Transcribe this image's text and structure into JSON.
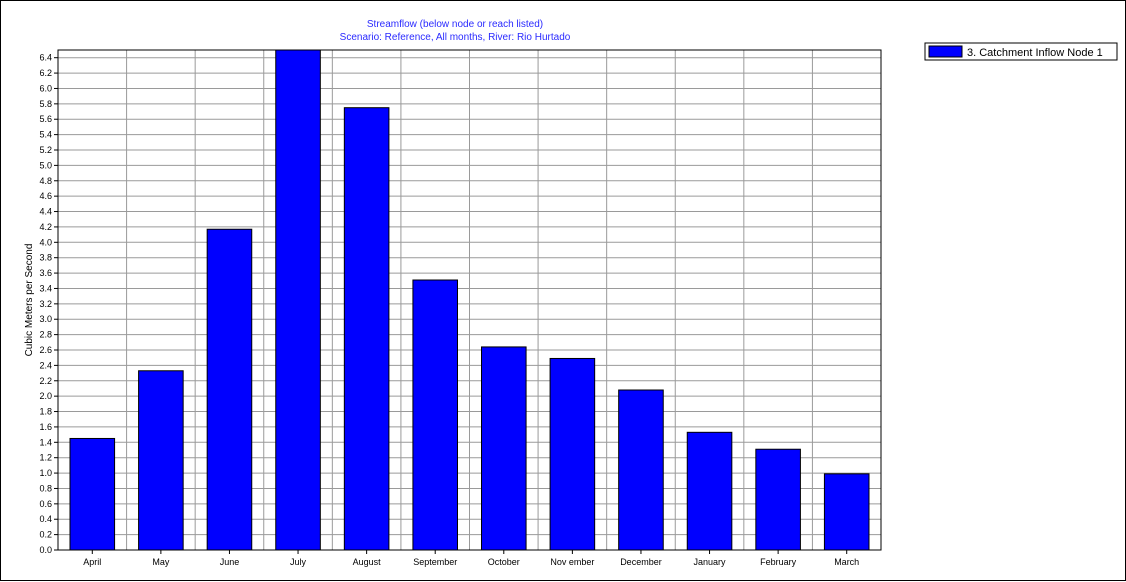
{
  "chart_data": {
    "type": "bar",
    "title": "Streamflow (below node or reach listed)",
    "subtitle": "Scenario: Reference,  All months,  River: Rio Hurtado",
    "xlabel": "",
    "ylabel": "Cubic Meters per Second",
    "ylim": [
      0,
      6.5
    ],
    "y_tick_step": 0.2,
    "grid": true,
    "legend_position": "top-right",
    "categories": [
      "April",
      "May",
      "June",
      "July",
      "August",
      "September",
      "October",
      "Nov ember",
      "December",
      "January",
      "February",
      "March"
    ],
    "series": [
      {
        "name": "3. Catchment Inflow Node 1",
        "color": "#0000ff",
        "values": [
          1.45,
          2.33,
          4.17,
          6.5,
          5.75,
          3.51,
          2.64,
          2.49,
          2.08,
          1.53,
          1.31,
          0.99
        ]
      }
    ]
  }
}
